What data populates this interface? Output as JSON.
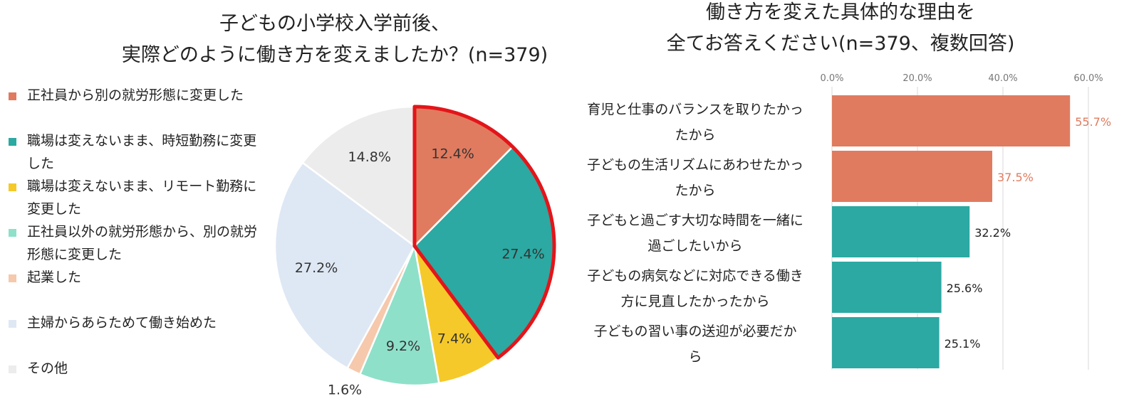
{
  "pie_title": [
    "子どもの小学校入学前後、",
    "実際どのように働き方を変えましたか？(n=379)"
  ],
  "bar_title": [
    "働き方を変えた具体的な理由を",
    "全てお答えください(n=379、複数回答)"
  ],
  "colors": {
    "orange": "#E07B5F",
    "teal": "#2BA9A2",
    "yellow": "#F5C929",
    "mint": "#8EE0C9",
    "peach": "#F6C8AC",
    "lightblue": "#DEE8F4",
    "lightgray": "#ECECEC",
    "highlight": "#E3151A"
  },
  "legend": [
    {
      "label": "正社員から別の就労形態に変更した",
      "color": "#E07B5F"
    },
    {
      "label": "職場は変えないまま、時短勤務に変更した",
      "color": "#2BA9A2"
    },
    {
      "label": "職場は変えないまま、リモート勤務に変更した",
      "color": "#F5C929"
    },
    {
      "label": "正社員以外の就労形態から、別の就労形態に変更した",
      "color": "#8EE0C9"
    },
    {
      "label": "起業した",
      "color": "#F6C8AC"
    },
    {
      "label": "主婦からあらためて働き始めた",
      "color": "#DEE8F4"
    },
    {
      "label": "その他",
      "color": "#ECECEC"
    }
  ],
  "chart_data": [
    {
      "type": "pie",
      "title": "子どもの小学校入学前後、実際どのように働き方を変えましたか？(n=379)",
      "categories": [
        "正社員から別の就労形態に変更した",
        "職場は変えないまま、時短勤務に変更した",
        "職場は変えないまま、リモート勤務に変更した",
        "正社員以外の就労形態から、別の就労形態に変更した",
        "起業した",
        "主婦からあらためて働き始めた",
        "その他"
      ],
      "values": [
        12.4,
        27.4,
        7.4,
        9.2,
        1.6,
        27.2,
        14.8
      ],
      "value_labels": [
        "12.4%",
        "27.4%",
        "7.4%",
        "9.2%",
        "1.6%",
        "27.2%",
        "14.8%"
      ],
      "highlighted": [
        0,
        1
      ],
      "legend_position": "left"
    },
    {
      "type": "bar",
      "orientation": "horizontal",
      "title": "働き方を変えた具体的な理由を全てお答えください(n=379、複数回答)",
      "categories": [
        "育児と仕事のバランスを取りたかったから",
        "子どもの生活リズムにあわせたかったから",
        "子どもと過ごす大切な時間を一緒に過ごしたいから",
        "子どもの病気などに対応できる働き方に見直したかったから",
        "子どもの習い事の送迎が必要だから"
      ],
      "category_lines": [
        [
          "育児と仕事のバランスを取りたかっ",
          "たから"
        ],
        [
          "子どもの生活リズムにあわせたかっ",
          "たから"
        ],
        [
          "子どもと過ごす大切な時間を一緒に",
          "過ごしたいから"
        ],
        [
          "子どもの病気などに対応できる働き",
          "方に見直したかったから"
        ],
        [
          "子どもの習い事の送迎が必要だか",
          "ら"
        ]
      ],
      "values": [
        55.7,
        37.5,
        32.2,
        25.6,
        25.1
      ],
      "value_labels": [
        "55.7%",
        "37.5%",
        "32.2%",
        "25.6%",
        "25.1%"
      ],
      "bar_colors": [
        "#E07B5F",
        "#E07B5F",
        "#2BA9A2",
        "#2BA9A2",
        "#2BA9A2"
      ],
      "label_colors": [
        "#E07B5F",
        "#E07B5F",
        "#222222",
        "#222222",
        "#222222"
      ],
      "xlim": [
        0,
        60
      ],
      "xticks": [
        0,
        20,
        40,
        60
      ],
      "xtick_labels": [
        "0.0%",
        "20.0%",
        "40.0%",
        "60.0%"
      ],
      "grid": true
    }
  ]
}
